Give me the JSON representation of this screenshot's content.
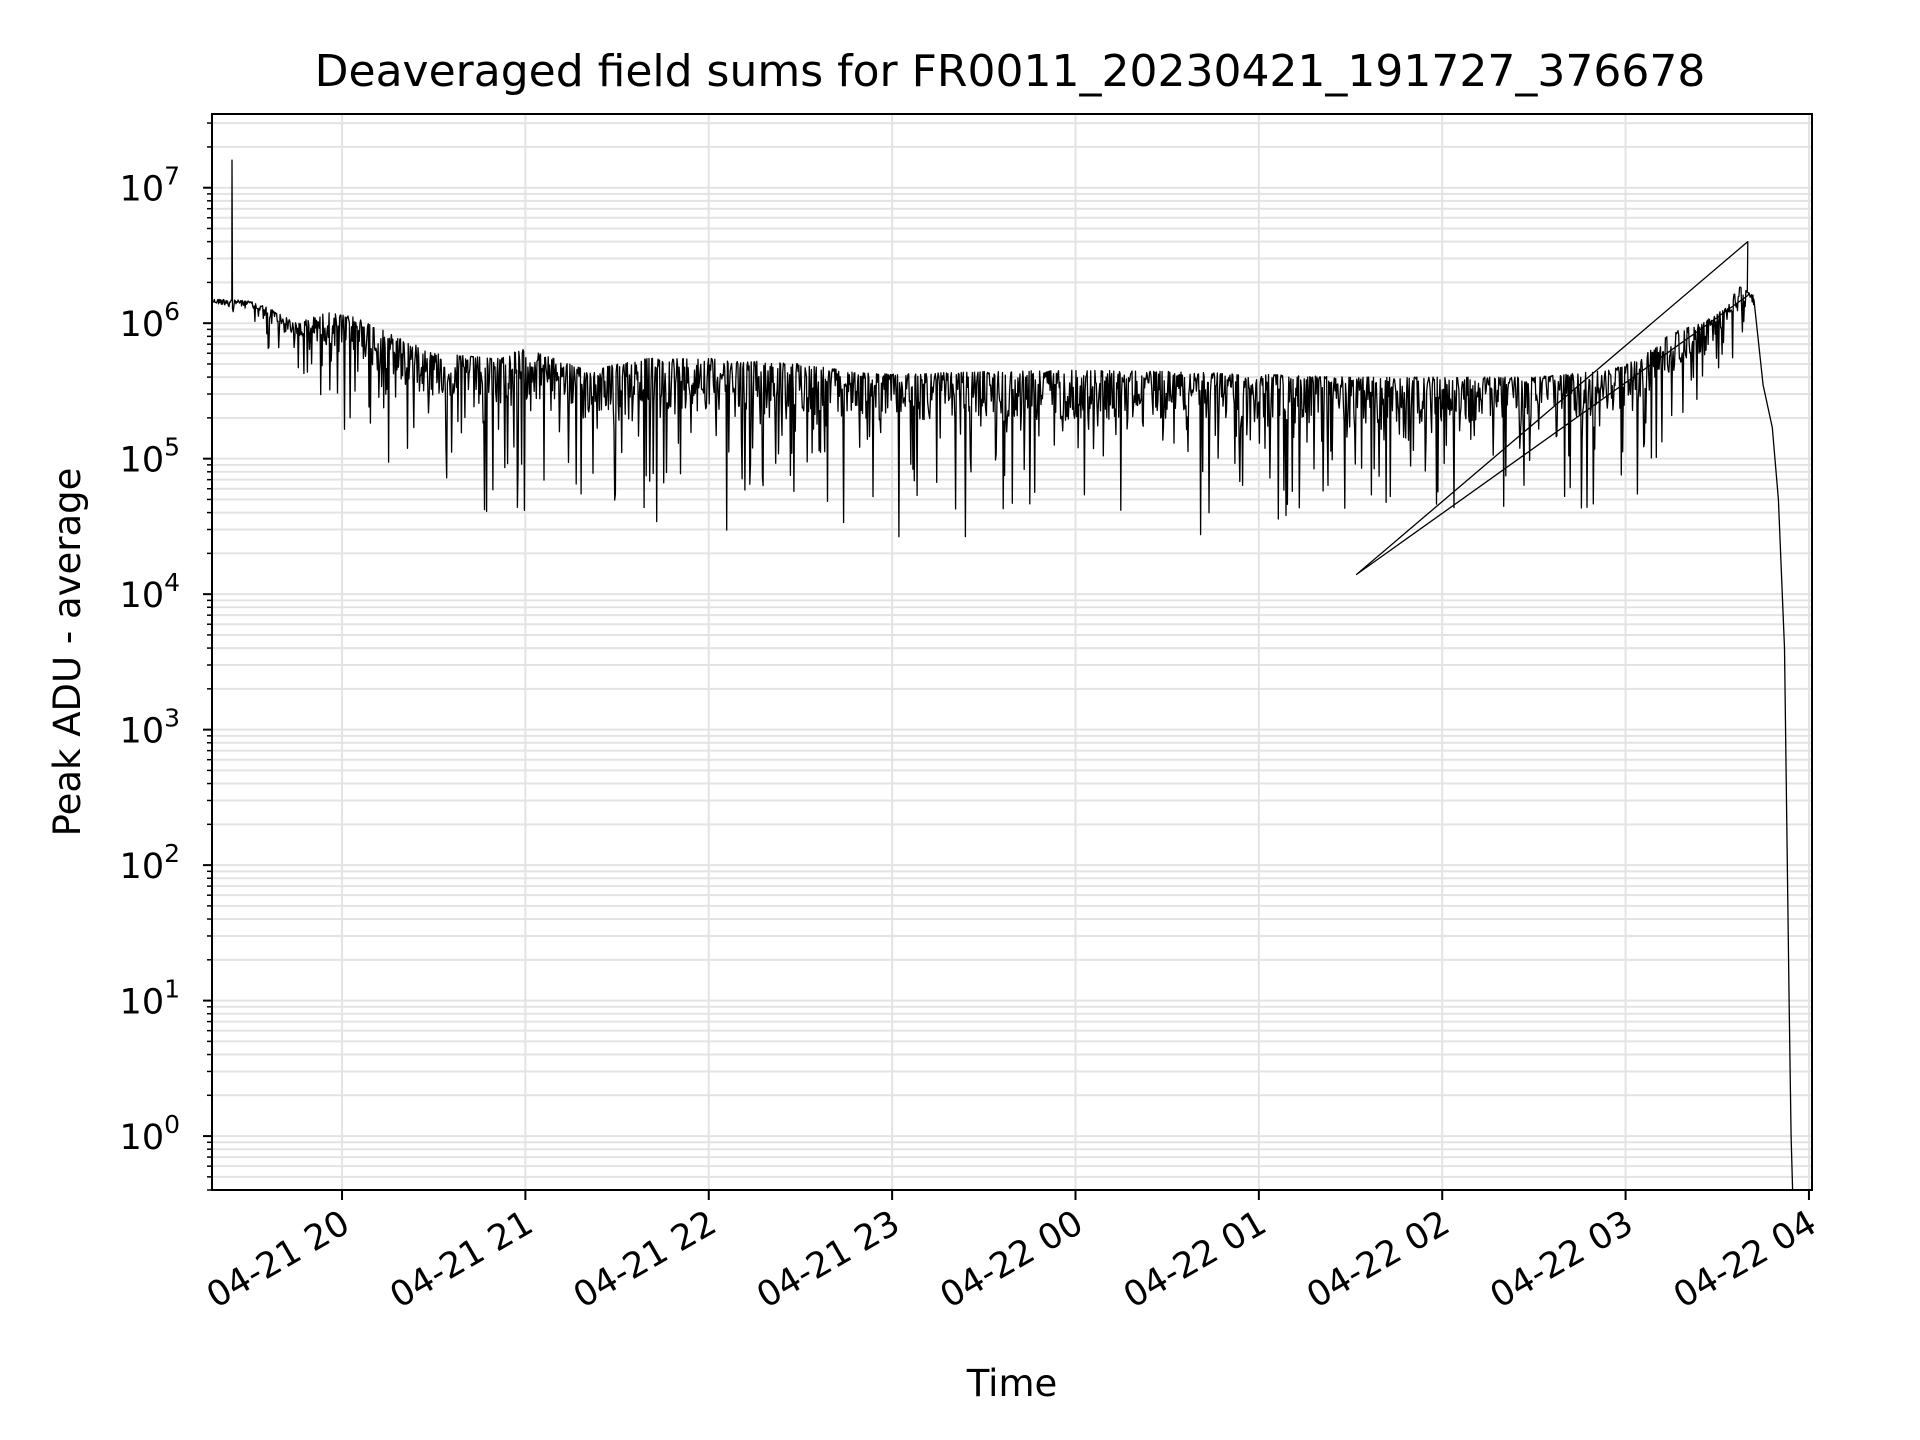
{
  "chart_data": {
    "type": "line",
    "title": "Deaveraged field sums for FR0011_20230421_191727_376678",
    "xlabel": "Time",
    "ylabel": "Peak ADU - average",
    "yscale": "log",
    "ylim": [
      0.4,
      35000000
    ],
    "xlim": [
      "2023-04-21 19:17:27",
      "2023-04-22 04:01:00"
    ],
    "grid": true,
    "x_ticks": [
      {
        "value": "2023-04-21 20:00",
        "label": "04-21 20"
      },
      {
        "value": "2023-04-21 21:00",
        "label": "04-21 21"
      },
      {
        "value": "2023-04-21 22:00",
        "label": "04-21 22"
      },
      {
        "value": "2023-04-21 23:00",
        "label": "04-21 23"
      },
      {
        "value": "2023-04-22 00:00",
        "label": "04-22 00"
      },
      {
        "value": "2023-04-22 01:00",
        "label": "04-22 01"
      },
      {
        "value": "2023-04-22 02:00",
        "label": "04-22 02"
      },
      {
        "value": "2023-04-22 03:00",
        "label": "04-22 03"
      },
      {
        "value": "2023-04-22 04:00",
        "label": "04-22 04"
      }
    ],
    "y_ticks": [
      {
        "value": 1,
        "base": "10",
        "exp": "0"
      },
      {
        "value": 10,
        "base": "10",
        "exp": "1"
      },
      {
        "value": 100,
        "base": "10",
        "exp": "2"
      },
      {
        "value": 1000,
        "base": "10",
        "exp": "3"
      },
      {
        "value": 10000,
        "base": "10",
        "exp": "4"
      },
      {
        "value": 100000,
        "base": "10",
        "exp": "5"
      },
      {
        "value": 1000000,
        "base": "10",
        "exp": "6"
      },
      {
        "value": 10000000,
        "base": "10",
        "exp": "7"
      }
    ],
    "line_color": "#000000",
    "series": [
      {
        "envelope": {
          "x": [
            "2023-04-21 19:17:30",
            "2023-04-21 19:24:00",
            "2023-04-21 19:30:00",
            "2023-04-21 19:36:00",
            "2023-04-21 19:45:00",
            "2023-04-21 19:55:00",
            "2023-04-21 20:05:00",
            "2023-04-21 20:15:00",
            "2023-04-21 20:30:00",
            "2023-04-21 20:50:00",
            "2023-04-21 21:00:00",
            "2023-04-21 21:20:00",
            "2023-04-21 21:40:00",
            "2023-04-21 22:00:00",
            "2023-04-21 22:30:00",
            "2023-04-21 22:50:00",
            "2023-04-21 23:00:00",
            "2023-04-21 23:30:00",
            "2023-04-22 00:00:00",
            "2023-04-22 00:30:00",
            "2023-04-22 01:00:00",
            "2023-04-22 01:30:00",
            "2023-04-22 02:00:00",
            "2023-04-22 02:30:00",
            "2023-04-22 02:55:00",
            "2023-04-22 03:05:00",
            "2023-04-22 03:15:00",
            "2023-04-22 03:25:00",
            "2023-04-22 03:33:00",
            "2023-04-22 03:37:00",
            "2023-04-22 03:40:00",
            "2023-04-22 03:42:00"
          ],
          "upper": [
            1500000,
            1500000,
            1450000,
            1300000,
            1000000,
            1200000,
            1100000,
            850000,
            600000,
            550000,
            650000,
            450000,
            550000,
            550000,
            500000,
            430000,
            420000,
            440000,
            450000,
            440000,
            420000,
            400000,
            400000,
            400000,
            450000,
            550000,
            850000,
            1000000,
            1300000,
            1900000,
            1700000,
            1600000
          ],
          "lower": [
            1050000,
            1050000,
            900000,
            500000,
            300000,
            200000,
            100000,
            50000,
            40000,
            30000,
            30000,
            30000,
            25000,
            25000,
            25000,
            24000,
            24000,
            23000,
            21000,
            20000,
            21000,
            19000,
            24000,
            30000,
            30000,
            40000,
            80000,
            150000,
            350000,
            600000,
            600000,
            500000
          ]
        },
        "spikes": [
          {
            "x": "2023-04-21 19:24:00",
            "y": 16000000
          },
          {
            "x": "2023-04-22 03:40:00",
            "y": 4000000
          },
          {
            "x": "2023-04-22 01:32:00",
            "y": 14000
          }
        ],
        "tail": {
          "x": [
            "2023-04-22 03:42:00",
            "2023-04-22 03:45:00",
            "2023-04-22 03:48:00",
            "2023-04-22 03:50:00",
            "2023-04-22 03:52:00",
            "2023-04-22 03:53:30",
            "2023-04-22 03:54:10",
            "2023-04-22 03:54:40"
          ],
          "y": [
            1500000,
            350000,
            170000,
            50000,
            4000,
            10,
            1,
            0.4
          ]
        }
      }
    ]
  }
}
